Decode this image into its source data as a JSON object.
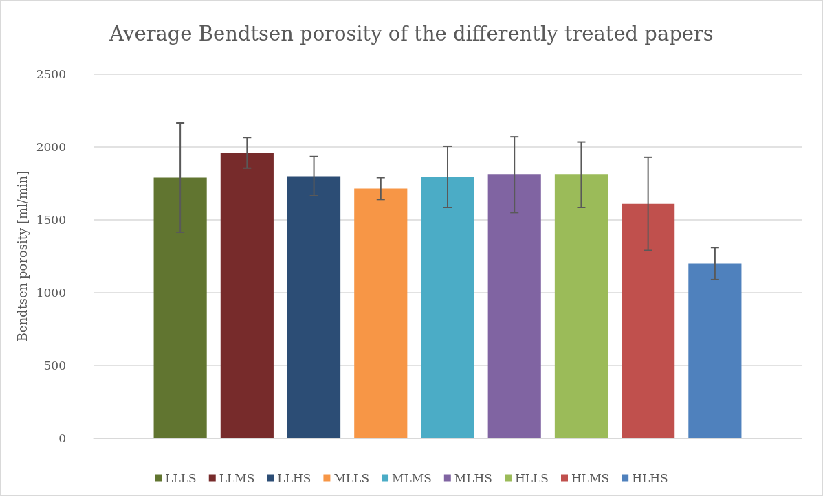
{
  "chart_data": {
    "type": "bar",
    "title": "Average Bendtsen porosity of the differently treated papers",
    "ylabel": "Bendtsen porosity [ml/min]",
    "categories": [
      null
    ],
    "series": [
      {
        "name": "LLLS",
        "color": "#617530",
        "values": [
          1790
        ],
        "errors": [
          375
        ]
      },
      {
        "name": "LLMS",
        "color": "#772b2b",
        "values": [
          1960
        ],
        "errors": [
          105
        ]
      },
      {
        "name": "LLHS",
        "color": "#2c4d75",
        "values": [
          1800
        ],
        "errors": [
          135
        ]
      },
      {
        "name": "MLLS",
        "color": "#f79646",
        "values": [
          1715
        ],
        "errors": [
          75
        ]
      },
      {
        "name": "MLMS",
        "color": "#4bacc6",
        "values": [
          1795
        ],
        "errors": [
          210
        ]
      },
      {
        "name": "MLHS",
        "color": "#8064a2",
        "values": [
          1810
        ],
        "errors": [
          260
        ]
      },
      {
        "name": "HLLS",
        "color": "#9bbb59",
        "values": [
          1810
        ],
        "errors": [
          225
        ]
      },
      {
        "name": "HLMS",
        "color": "#c0504d",
        "values": [
          1610
        ],
        "errors": [
          320
        ]
      },
      {
        "name": "HLHS",
        "color": "#4f81bd",
        "values": [
          1200
        ],
        "errors": [
          110
        ]
      }
    ],
    "ylim": [
      0,
      2500
    ],
    "yticks": [
      0,
      500,
      1000,
      1500,
      2000,
      2500
    ],
    "grid": "y",
    "legend": "bottom"
  }
}
